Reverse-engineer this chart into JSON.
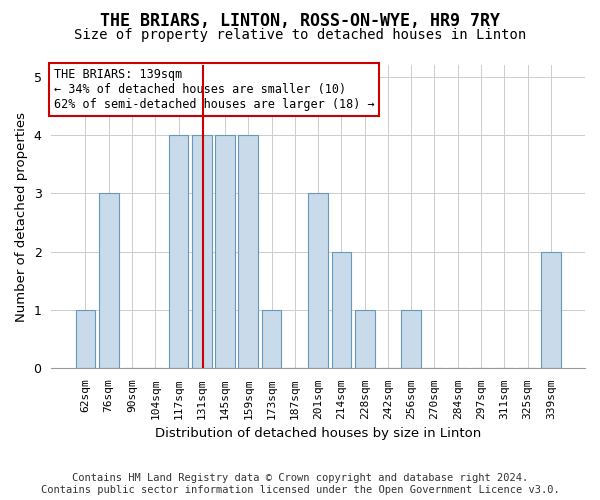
{
  "title": "THE BRIARS, LINTON, ROSS-ON-WYE, HR9 7RY",
  "subtitle": "Size of property relative to detached houses in Linton",
  "xlabel": "Distribution of detached houses by size in Linton",
  "ylabel": "Number of detached properties",
  "categories": [
    "62sqm",
    "76sqm",
    "90sqm",
    "104sqm",
    "117sqm",
    "131sqm",
    "145sqm",
    "159sqm",
    "173sqm",
    "187sqm",
    "201sqm",
    "214sqm",
    "228sqm",
    "242sqm",
    "256sqm",
    "270sqm",
    "284sqm",
    "297sqm",
    "311sqm",
    "325sqm",
    "339sqm"
  ],
  "values": [
    1,
    3,
    0,
    0,
    4,
    4,
    4,
    4,
    1,
    0,
    3,
    2,
    1,
    0,
    1,
    0,
    0,
    0,
    0,
    0,
    2
  ],
  "bar_color": "#c9daea",
  "bar_edge_color": "#6699bb",
  "highlight_color": "#cc0000",
  "annotation_text": "THE BRIARS: 139sqm\n← 34% of detached houses are smaller (10)\n62% of semi-detached houses are larger (18) →",
  "ylim": [
    0,
    5.2
  ],
  "yticks": [
    0,
    1,
    2,
    3,
    4,
    5
  ],
  "footer": "Contains HM Land Registry data © Crown copyright and database right 2024.\nContains public sector information licensed under the Open Government Licence v3.0."
}
